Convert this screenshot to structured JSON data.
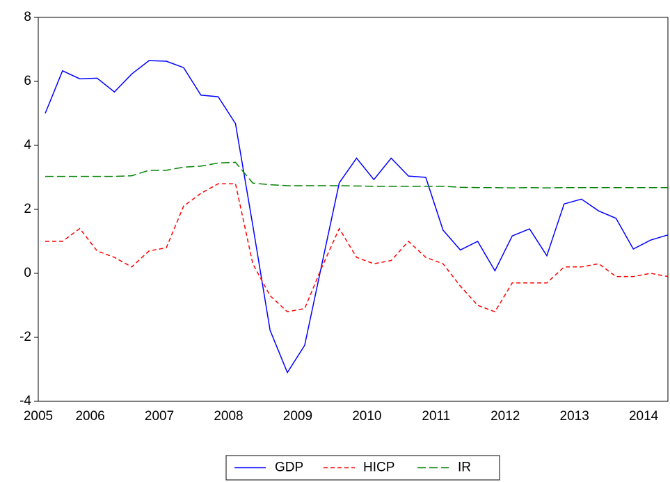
{
  "chart_data": {
    "type": "line",
    "categories": [
      "2005",
      null,
      null,
      "2006",
      null,
      null,
      null,
      "2007",
      null,
      null,
      null,
      "2008",
      null,
      null,
      null,
      "2009",
      null,
      null,
      null,
      "2010",
      null,
      null,
      null,
      "2011",
      null,
      null,
      null,
      "2012",
      null,
      null,
      null,
      "2013",
      null,
      null,
      null,
      "2014",
      null
    ],
    "series": [
      {
        "name": "GDP",
        "color": "#0000ff",
        "dash": "solid",
        "values": [
          5.0,
          6.33,
          6.08,
          6.1,
          5.67,
          6.23,
          6.65,
          6.63,
          6.43,
          5.57,
          5.52,
          4.68,
          1.5,
          -1.78,
          -3.1,
          -2.25,
          0.3,
          2.83,
          3.6,
          2.93,
          3.6,
          3.04,
          3.0,
          1.35,
          0.73,
          1.0,
          0.08,
          1.17,
          1.39,
          0.55,
          2.17,
          2.32,
          1.95,
          1.72,
          0.76,
          1.04,
          1.2
        ]
      },
      {
        "name": "HICP",
        "color": "#ff0000",
        "dash": "dashed",
        "values": [
          1.0,
          1.0,
          1.4,
          0.7,
          0.5,
          0.2,
          0.7,
          0.8,
          2.1,
          2.5,
          2.8,
          2.8,
          0.3,
          -0.7,
          -1.2,
          -1.1,
          0.2,
          1.4,
          0.5,
          0.3,
          0.4,
          1.0,
          0.5,
          0.3,
          -0.4,
          -1.0,
          -1.2,
          -0.3,
          -0.3,
          -0.3,
          0.2,
          0.2,
          0.3,
          -0.1,
          -0.1,
          0.0,
          -0.1
        ]
      },
      {
        "name": "IR",
        "color": "#008000",
        "dash": "longdash",
        "values": [
          3.03,
          3.03,
          3.03,
          3.03,
          3.03,
          3.05,
          3.22,
          3.22,
          3.32,
          3.35,
          3.45,
          3.47,
          2.82,
          2.77,
          2.74,
          2.74,
          2.74,
          2.74,
          2.73,
          2.72,
          2.72,
          2.72,
          2.72,
          2.72,
          2.69,
          2.68,
          2.68,
          2.67,
          2.68,
          2.67,
          2.68,
          2.68,
          2.68,
          2.68,
          2.68,
          2.68,
          2.68
        ]
      }
    ],
    "ylim": [
      -4,
      8
    ],
    "yticks": [
      -4,
      -2,
      0,
      2,
      4,
      6,
      8
    ],
    "legend": "bottom"
  }
}
